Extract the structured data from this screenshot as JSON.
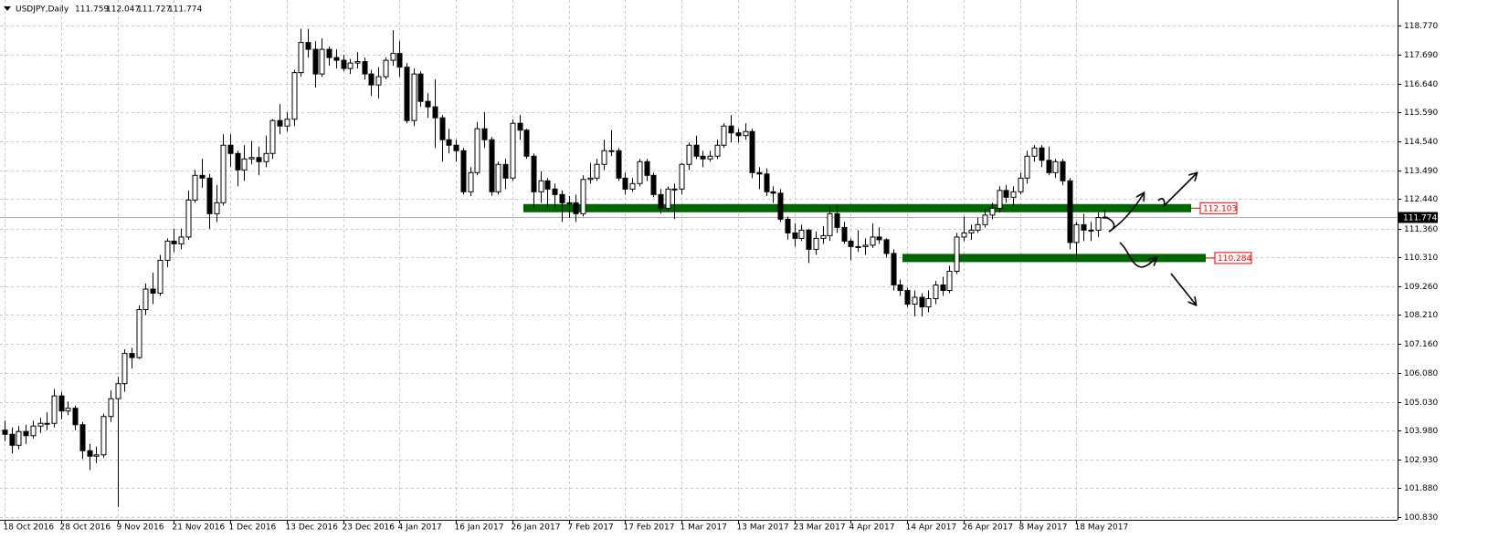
{
  "chart_data": {
    "type": "candlestick",
    "title": "USDJPY,Daily",
    "categories": [
      "18 Oct 2016",
      null,
      null,
      null,
      null,
      null,
      null,
      null,
      "28 Oct 2016",
      null,
      null,
      null,
      null,
      null,
      null,
      null,
      "9 Nov 2016",
      null,
      null,
      null,
      null,
      null,
      null,
      null,
      "21 Nov 2016",
      null,
      null,
      null,
      null,
      null,
      null,
      null,
      "1 Dec 2016",
      null,
      null,
      null,
      null,
      null,
      null,
      null,
      "13 Dec 2016",
      null,
      null,
      null,
      null,
      null,
      null,
      null,
      "23 Dec 2016",
      null,
      null,
      null,
      null,
      null,
      null,
      null,
      "4 Jan 2017",
      null,
      null,
      null,
      null,
      null,
      null,
      null,
      "16 Jan 2017",
      null,
      null,
      null,
      null,
      null,
      null,
      null,
      "26 Jan 2017",
      null,
      null,
      null,
      null,
      null,
      null,
      null,
      "7 Feb 2017",
      null,
      null,
      null,
      null,
      null,
      null,
      null,
      "17 Feb 2017",
      null,
      null,
      null,
      null,
      null,
      null,
      null,
      "1 Mar 2017",
      null,
      null,
      null,
      null,
      null,
      null,
      null,
      "13 Mar 2017",
      null,
      null,
      null,
      null,
      null,
      null,
      null,
      "23 Mar 2017",
      null,
      null,
      null,
      null,
      null,
      null,
      null,
      "4 Apr 2017",
      null,
      null,
      null,
      null,
      null,
      null,
      null,
      "14 Apr 2017",
      null,
      null,
      null,
      null,
      null,
      null,
      null,
      "26 Apr 2017",
      null,
      null,
      null,
      null,
      null,
      null,
      null,
      "8 May 2017",
      null,
      null,
      null,
      null,
      null,
      null,
      null,
      "18 May 2017",
      null,
      null,
      null,
      null
    ],
    "open": [
      104.0,
      103.85,
      103.45,
      103.95,
      103.8,
      104.15,
      104.25,
      104.25,
      105.25,
      104.7,
      104.8,
      104.2,
      103.25,
      103.05,
      103.1,
      104.5,
      105.15,
      105.7,
      106.8,
      106.65,
      108.4,
      109.15,
      109.0,
      110.2,
      110.9,
      110.8,
      111.05,
      112.4,
      113.3,
      113.2,
      111.9,
      112.3,
      114.4,
      114.1,
      113.5,
      113.9,
      113.95,
      113.8,
      114.1,
      115.3,
      115.1,
      115.35,
      117.05,
      118.15,
      117.9,
      117.0,
      117.9,
      117.6,
      117.5,
      117.2,
      117.4,
      117.45,
      117.0,
      116.6,
      116.9,
      117.5,
      117.75,
      117.25,
      115.3,
      117.0,
      116.0,
      115.8,
      115.4,
      114.6,
      114.4,
      114.2,
      112.7,
      113.4,
      115.0,
      114.6,
      112.7,
      113.7,
      113.2,
      115.2,
      114.95,
      114.0,
      112.7,
      113.1,
      112.8,
      112.6,
      112.3,
      112.3,
      111.9,
      113.15,
      113.2,
      113.7,
      114.2,
      114.2,
      113.2,
      112.8,
      113.0,
      113.8,
      113.3,
      112.6,
      112.1,
      112.8,
      112.8,
      113.7,
      114.4,
      114.0,
      113.9,
      114.0,
      114.4,
      115.1,
      114.85,
      114.75,
      114.9,
      113.4,
      113.35,
      112.7,
      112.65,
      111.7,
      111.2,
      111.0,
      111.3,
      110.6,
      111.0,
      111.1,
      111.9,
      111.4,
      110.9,
      110.7,
      110.7,
      110.75,
      111.05,
      110.95,
      110.45,
      109.3,
      109.1,
      108.6,
      108.85,
      108.5,
      108.8,
      109.3,
      109.1,
      109.8,
      111.05,
      111.2,
      111.3,
      111.5,
      111.85,
      112.1,
      112.75,
      112.5,
      112.7,
      113.2,
      114.0,
      114.3,
      113.85,
      113.4,
      113.8,
      113.1,
      110.85,
      111.5,
      111.3,
      111.3,
      111.759
    ],
    "high": [
      104.35,
      104.1,
      104.15,
      104.2,
      104.35,
      104.45,
      104.65,
      105.5,
      105.4,
      105.05,
      104.9,
      104.3,
      103.5,
      103.4,
      104.6,
      105.45,
      105.95,
      106.95,
      107.0,
      108.55,
      109.35,
      109.75,
      110.4,
      111.0,
      111.35,
      111.35,
      112.75,
      113.5,
      113.9,
      113.35,
      112.95,
      114.8,
      114.8,
      114.2,
      114.4,
      114.55,
      114.35,
      114.75,
      115.35,
      115.9,
      115.6,
      117.15,
      118.65,
      118.65,
      118.2,
      118.3,
      118.0,
      117.9,
      117.7,
      117.55,
      117.8,
      117.6,
      117.15,
      117.25,
      117.6,
      118.6,
      118.2,
      117.4,
      117.2,
      117.1,
      116.3,
      116.8,
      115.5,
      115.0,
      114.6,
      114.3,
      113.6,
      115.25,
      115.6,
      114.7,
      113.8,
      113.9,
      115.35,
      115.5,
      115.0,
      114.1,
      113.45,
      113.2,
      113.0,
      112.75,
      112.55,
      112.6,
      113.3,
      113.75,
      113.9,
      114.6,
      114.95,
      114.3,
      113.4,
      113.2,
      113.9,
      113.9,
      113.4,
      112.8,
      112.9,
      113.0,
      113.75,
      114.5,
      114.75,
      114.2,
      114.2,
      114.6,
      115.2,
      115.5,
      115.0,
      115.2,
      115.0,
      113.6,
      113.55,
      112.9,
      112.8,
      111.8,
      111.55,
      111.5,
      111.35,
      111.25,
      111.45,
      112.15,
      112.2,
      111.6,
      111.0,
      111.3,
      111.0,
      111.55,
      111.4,
      111.0,
      110.6,
      109.5,
      109.2,
      109.1,
      109.0,
      109.1,
      109.45,
      109.6,
      110.0,
      111.2,
      111.8,
      111.5,
      111.75,
      112.05,
      112.3,
      112.9,
      112.95,
      112.9,
      113.4,
      114.2,
      114.4,
      114.4,
      114.35,
      113.9,
      113.9,
      113.2,
      111.6,
      111.9,
      111.6,
      111.95,
      112.047
    ],
    "low": [
      103.6,
      103.15,
      103.3,
      103.5,
      103.7,
      103.9,
      104.0,
      104.1,
      104.4,
      104.55,
      104.0,
      102.95,
      102.55,
      102.8,
      103.0,
      104.3,
      101.2,
      105.4,
      106.25,
      106.6,
      108.2,
      108.6,
      108.9,
      109.95,
      110.5,
      110.6,
      110.95,
      112.3,
      112.85,
      111.35,
      111.6,
      112.2,
      113.6,
      112.9,
      113.1,
      113.7,
      113.3,
      113.6,
      113.9,
      114.8,
      114.9,
      115.1,
      116.9,
      117.6,
      116.5,
      116.9,
      117.3,
      117.2,
      117.1,
      117.0,
      117.2,
      116.8,
      116.2,
      116.1,
      116.8,
      117.3,
      116.9,
      115.2,
      115.1,
      115.8,
      115.4,
      114.3,
      113.8,
      114.1,
      113.8,
      112.6,
      112.55,
      113.3,
      114.3,
      112.55,
      112.6,
      112.8,
      113.1,
      114.6,
      113.9,
      112.1,
      112.3,
      112.1,
      112.1,
      111.6,
      111.75,
      111.6,
      111.8,
      113.0,
      113.1,
      113.5,
      114.0,
      113.1,
      112.6,
      112.7,
      112.9,
      113.1,
      112.5,
      111.9,
      112.0,
      111.7,
      112.6,
      113.5,
      113.9,
      113.6,
      113.8,
      113.9,
      114.3,
      114.5,
      114.5,
      114.6,
      113.2,
      112.8,
      112.55,
      112.3,
      111.6,
      110.95,
      110.7,
      110.9,
      110.1,
      110.4,
      110.8,
      110.9,
      111.2,
      110.8,
      110.2,
      110.5,
      110.4,
      110.65,
      110.8,
      110.3,
      109.1,
      108.9,
      108.5,
      108.15,
      108.15,
      108.3,
      108.6,
      108.9,
      109.0,
      109.7,
      110.9,
      110.95,
      111.2,
      111.4,
      111.7,
      111.95,
      112.3,
      112.2,
      112.6,
      113.0,
      113.8,
      113.6,
      113.3,
      113.2,
      112.95,
      110.6,
      110.25,
      110.9,
      110.9,
      111.05,
      111.727
    ],
    "close": [
      103.85,
      103.45,
      103.95,
      103.8,
      104.15,
      104.25,
      104.25,
      105.25,
      104.7,
      104.8,
      104.2,
      103.25,
      103.05,
      103.1,
      104.5,
      105.15,
      105.7,
      106.8,
      106.65,
      108.4,
      109.15,
      109.0,
      110.2,
      110.9,
      110.8,
      111.05,
      112.4,
      113.3,
      113.2,
      111.9,
      112.3,
      114.4,
      114.1,
      113.5,
      113.9,
      113.95,
      113.8,
      114.1,
      115.3,
      115.1,
      115.35,
      117.05,
      118.15,
      117.9,
      117.0,
      117.9,
      117.6,
      117.5,
      117.2,
      117.4,
      117.45,
      117.0,
      116.6,
      116.9,
      117.5,
      117.75,
      117.25,
      115.3,
      117.0,
      116.0,
      115.8,
      115.4,
      114.6,
      114.4,
      114.2,
      112.7,
      113.4,
      115.0,
      114.6,
      112.7,
      113.7,
      113.2,
      115.2,
      114.95,
      114.0,
      112.7,
      113.1,
      112.8,
      112.6,
      112.3,
      112.3,
      111.9,
      113.15,
      113.2,
      113.7,
      114.2,
      114.2,
      113.2,
      112.8,
      113.0,
      113.8,
      113.3,
      112.6,
      112.1,
      112.8,
      112.8,
      113.7,
      114.4,
      114.0,
      113.9,
      114.0,
      114.4,
      115.1,
      114.85,
      114.75,
      114.9,
      113.4,
      113.35,
      112.7,
      112.65,
      111.7,
      111.2,
      111.0,
      111.3,
      110.6,
      111.0,
      111.1,
      111.9,
      111.4,
      110.9,
      110.7,
      110.7,
      110.75,
      111.05,
      110.95,
      110.45,
      109.3,
      109.1,
      108.6,
      108.85,
      108.5,
      108.8,
      109.3,
      109.1,
      109.8,
      111.05,
      111.2,
      111.3,
      111.5,
      111.85,
      112.1,
      112.75,
      112.5,
      112.7,
      113.2,
      114.0,
      114.3,
      113.85,
      113.4,
      113.8,
      113.1,
      110.85,
      111.5,
      111.3,
      111.3,
      111.76,
      111.774
    ],
    "up_color": "#ffffff",
    "down_color": "#000000",
    "wick_color": "#000000",
    "ylim": [
      100.73,
      119.7
    ],
    "yticks": [
      {
        "value": 118.77,
        "label": "118.770"
      },
      {
        "value": 117.69,
        "label": "117.690"
      },
      {
        "value": 116.64,
        "label": "116.640"
      },
      {
        "value": 115.59,
        "label": "115.590"
      },
      {
        "value": 114.54,
        "label": "114.540"
      },
      {
        "value": 113.49,
        "label": "113.490"
      },
      {
        "value": 112.44,
        "label": "112.440"
      },
      {
        "value": 111.36,
        "label": "111.360"
      },
      {
        "value": 110.31,
        "label": "110.310"
      },
      {
        "value": 109.26,
        "label": "109.260"
      },
      {
        "value": 108.21,
        "label": "108.210"
      },
      {
        "value": 107.16,
        "label": "107.160"
      },
      {
        "value": 106.08,
        "label": "106.080"
      },
      {
        "value": 105.03,
        "label": "105.030"
      },
      {
        "value": 103.98,
        "label": "103.980"
      },
      {
        "value": 102.93,
        "label": "102.930"
      },
      {
        "value": 101.88,
        "label": "101.880"
      },
      {
        "value": 100.83,
        "label": "100.830"
      }
    ],
    "grid": true,
    "levels": [
      {
        "value": 112.103,
        "color": "#006400"
      },
      {
        "value": 110.284,
        "color": "#006400"
      }
    ]
  }
}
